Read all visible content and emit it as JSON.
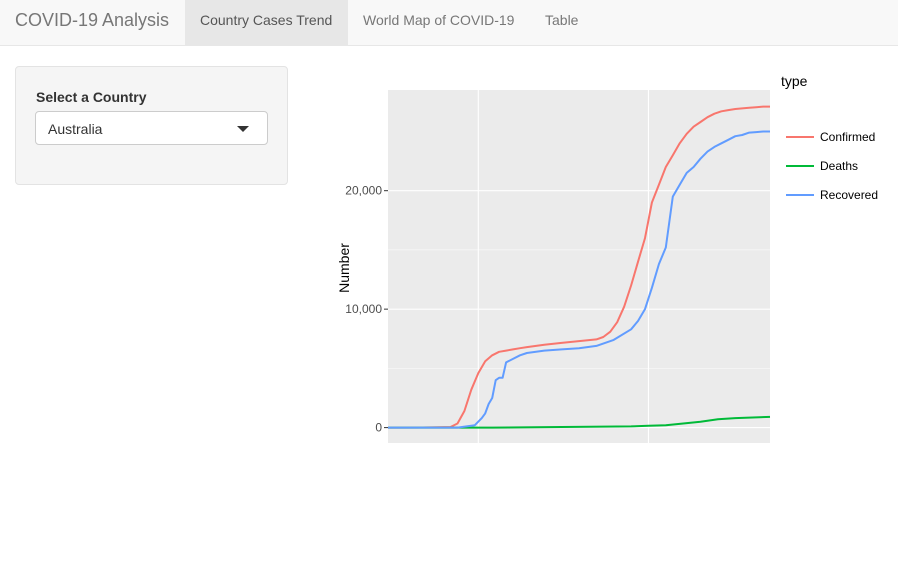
{
  "app": {
    "title": "COVID-19 Analysis"
  },
  "nav": {
    "tabs": [
      {
        "label": "Country Cases Trend",
        "active": true
      },
      {
        "label": "World Map of COVID-19",
        "active": false
      },
      {
        "label": "Table",
        "active": false
      }
    ]
  },
  "sidebar": {
    "select_label": "Select a Country",
    "selected_country": "Australia"
  },
  "colors": {
    "confirmed": "#F8766D",
    "deaths": "#00BA38",
    "recovered": "#619CFF",
    "panel": "#EBEBEB"
  },
  "chart_data": {
    "type": "line",
    "ylabel": "Number",
    "xlabel": "",
    "legend_title": "type",
    "legend_position": "right",
    "grid": true,
    "ylim": [
      -1300,
      28500
    ],
    "xlim": [
      0,
      110
    ],
    "y_ticks": [
      {
        "value": 0,
        "label": "0"
      },
      {
        "value": 10000,
        "label": "10,000"
      },
      {
        "value": 20000,
        "label": "20,000"
      }
    ],
    "x_gridlines": [
      26,
      75
    ],
    "series": [
      {
        "name": "Confirmed",
        "x": [
          0,
          10,
          18,
          20,
          22,
          24,
          26,
          28,
          30,
          32,
          34,
          36,
          38,
          40,
          45,
          50,
          55,
          60,
          62,
          64,
          66,
          68,
          70,
          72,
          74,
          76,
          78,
          80,
          82,
          84,
          86,
          88,
          90,
          92,
          94,
          96,
          98,
          100,
          102,
          104,
          106,
          108,
          110
        ],
        "y": [
          0,
          5,
          50,
          350,
          1400,
          3200,
          4600,
          5600,
          6100,
          6400,
          6500,
          6600,
          6700,
          6800,
          7000,
          7150,
          7300,
          7450,
          7650,
          8100,
          8900,
          10200,
          12000,
          14000,
          16000,
          19000,
          20500,
          22000,
          23000,
          24000,
          24800,
          25400,
          25800,
          26200,
          26500,
          26700,
          26800,
          26900,
          26950,
          27000,
          27050,
          27100,
          27100
        ]
      },
      {
        "name": "Deaths",
        "x": [
          0,
          30,
          50,
          70,
          75,
          80,
          85,
          90,
          95,
          100,
          105,
          110
        ],
        "y": [
          0,
          0,
          50,
          100,
          150,
          200,
          350,
          500,
          700,
          800,
          850,
          900
        ]
      },
      {
        "name": "Recovered",
        "x": [
          0,
          20,
          25,
          27,
          28,
          29,
          30,
          31,
          32,
          33,
          34,
          36,
          38,
          40,
          45,
          50,
          55,
          60,
          65,
          70,
          72,
          74,
          76,
          78,
          80,
          82,
          84,
          86,
          88,
          90,
          92,
          94,
          96,
          98,
          100,
          102,
          104,
          106,
          108,
          110
        ],
        "y": [
          0,
          0,
          200,
          800,
          1200,
          2000,
          2500,
          4000,
          4200,
          4200,
          5500,
          5800,
          6100,
          6300,
          6500,
          6600,
          6700,
          6900,
          7400,
          8300,
          9000,
          10000,
          11800,
          13800,
          15200,
          19500,
          20500,
          21500,
          22000,
          22700,
          23300,
          23700,
          24000,
          24300,
          24600,
          24700,
          24900,
          24950,
          25000,
          25000
        ]
      }
    ]
  }
}
